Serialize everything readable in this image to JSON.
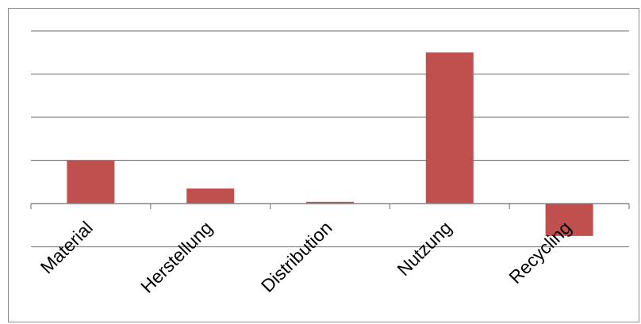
{
  "colors": {
    "bar": "#c0504d",
    "gridline": "#868686",
    "axis": "#868686",
    "border": "#8c8c8c"
  },
  "chart_data": {
    "type": "bar",
    "title": "",
    "xlabel": "",
    "ylabel": "",
    "categories": [
      "Material",
      "Herstellung",
      "Distribution",
      "Nutzung",
      "Recycling"
    ],
    "values": [
      1.0,
      0.35,
      0.04,
      3.5,
      -0.75
    ],
    "ylim": [
      -1,
      4
    ],
    "grid": true,
    "legend": "none",
    "y_tick_labels_shown": false
  }
}
